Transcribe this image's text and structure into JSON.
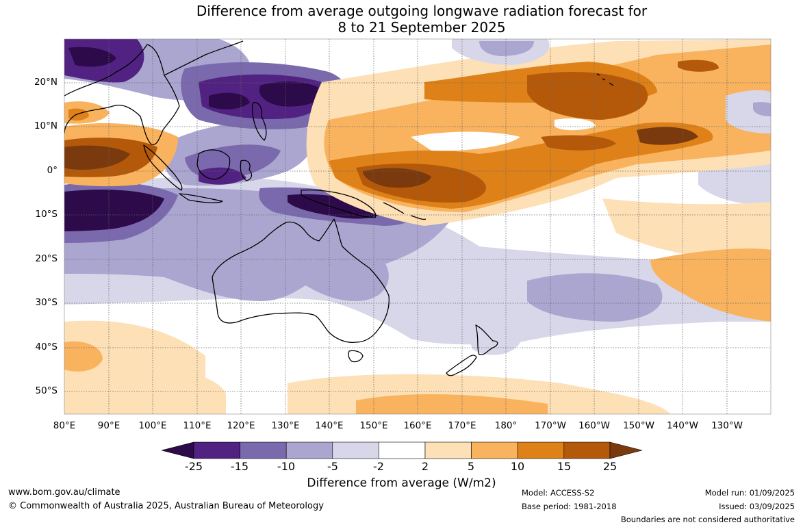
{
  "title_line1": "Difference from average outgoing longwave radiation forecast for",
  "title_line2": "8 to 21 September 2025",
  "lat_labels": [
    "20°N",
    "10°N",
    "0°",
    "10°S",
    "20°S",
    "30°S",
    "40°S",
    "50°S"
  ],
  "lon_labels": [
    "80°E",
    "90°E",
    "100°E",
    "110°E",
    "120°E",
    "130°E",
    "140°E",
    "150°E",
    "160°E",
    "170°E",
    "180°",
    "170°W",
    "160°W",
    "150°W",
    "140°W",
    "130°W"
  ],
  "colorbar": {
    "ticks": [
      "-25",
      "-15",
      "-10",
      "-5",
      "-2",
      "2",
      "5",
      "10",
      "15",
      "25"
    ],
    "colors": {
      "lt_m25": "#2d0a4a",
      "m25_m15": "#512281",
      "m15_m10": "#7a6aad",
      "m10_m5": "#aba6d0",
      "m5_m2": "#d8d7ea",
      "m2_p2": "#ffffff",
      "p2_p5": "#fde0b5",
      "p5_p10": "#f9b35e",
      "p10_p15": "#df8119",
      "p15_p25": "#b45909",
      "gt_p25": "#7a3a0e"
    },
    "title": "Difference from average (W/m2)"
  },
  "footer": {
    "website": "www.bom.gov.au/climate",
    "copyright": "© Commonwealth of Australia 2025, Australian Bureau of Meteorology",
    "model": "Model: ACCESS-S2",
    "base_period": "Base period: 1981-2018",
    "model_run": "Model run: 01/09/2025",
    "issued": "Issued: 03/09/2025",
    "disclaimer": "Boundaries are not considered authoritative"
  }
}
